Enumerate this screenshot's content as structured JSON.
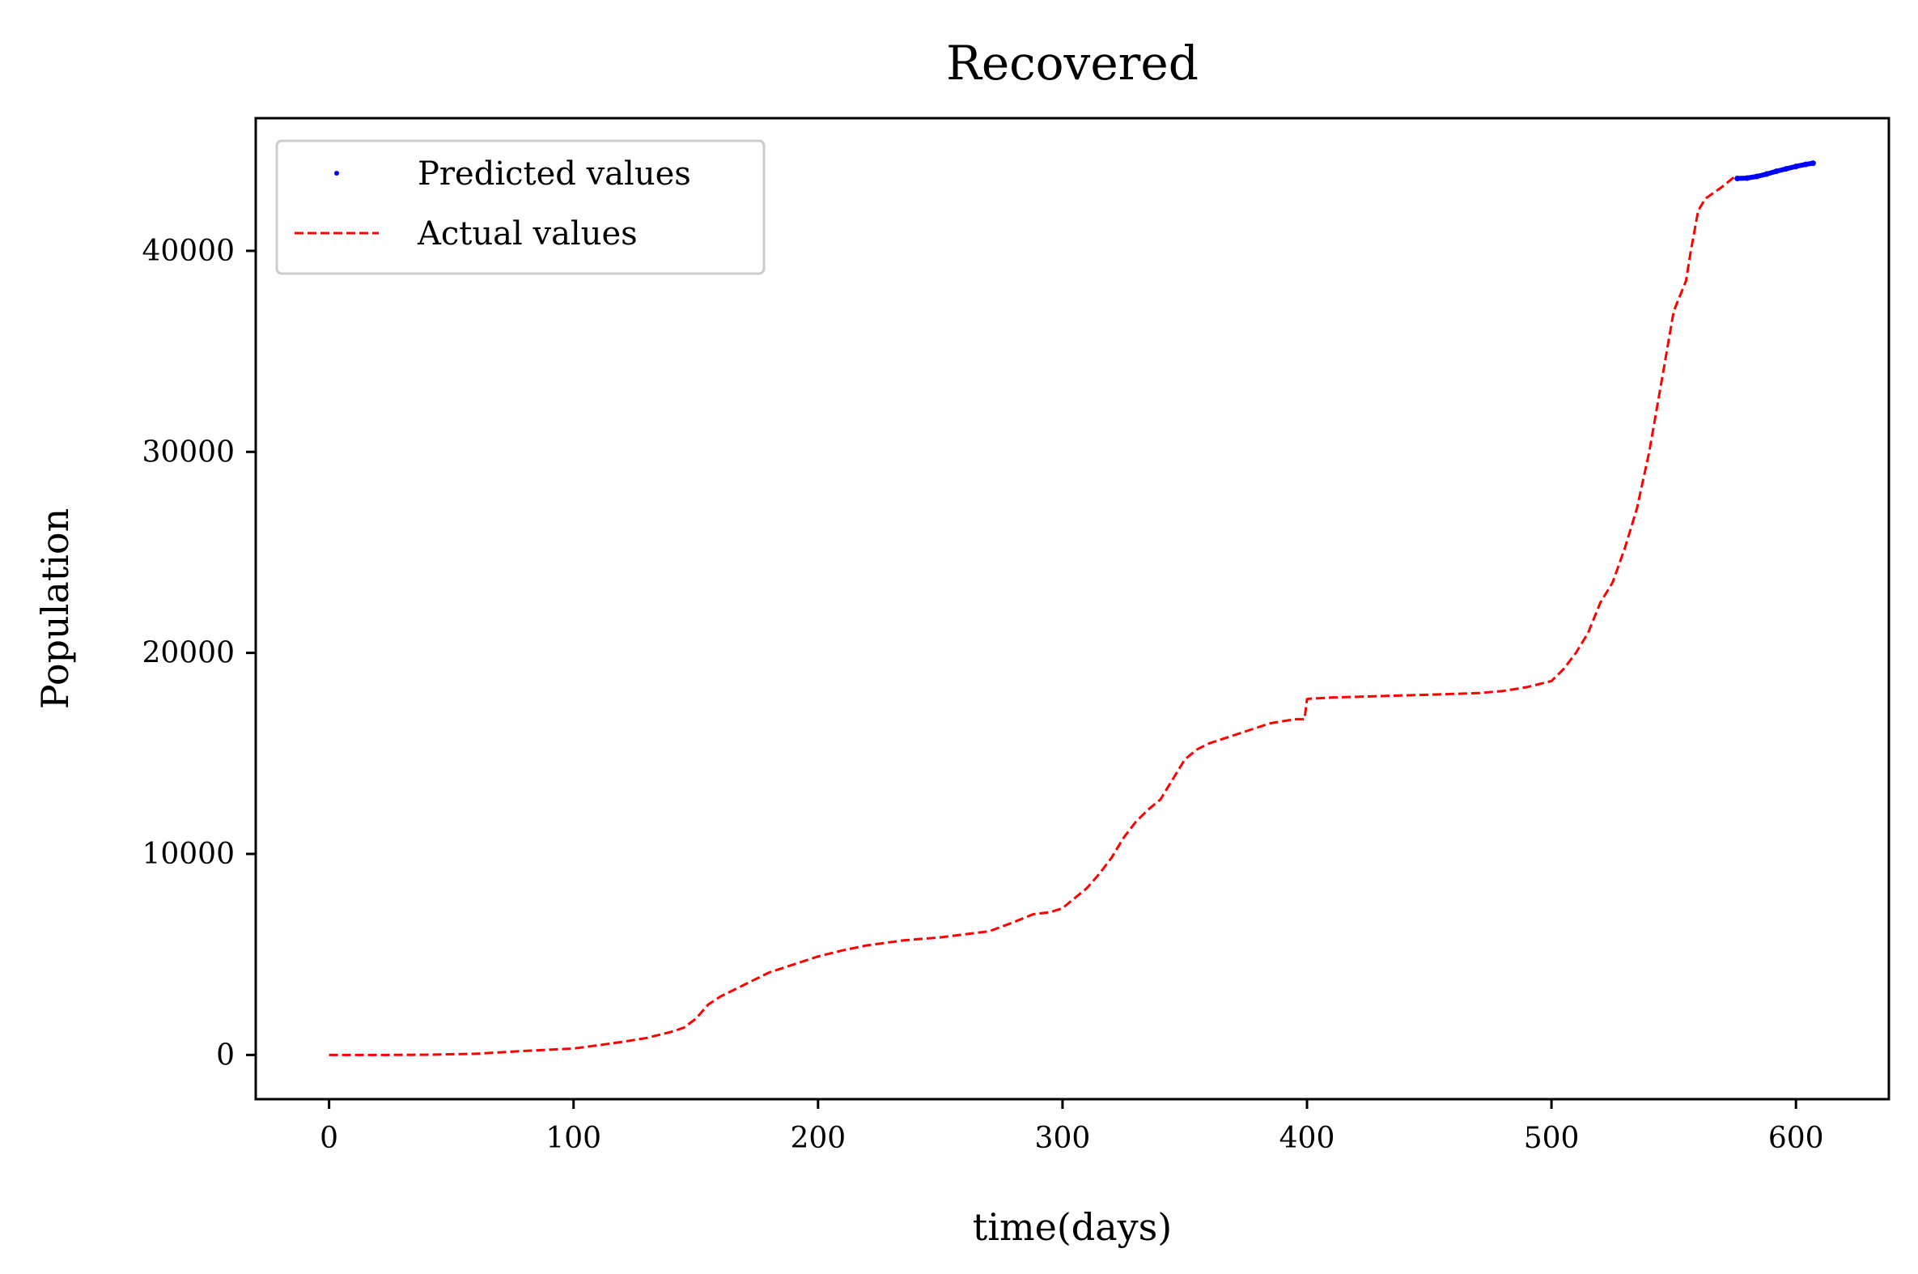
{
  "chart_data": {
    "type": "line",
    "title": "Recovered",
    "xlabel": "time(days)",
    "ylabel": "Population",
    "xlim": [
      -30,
      638
    ],
    "ylim": [
      -2200,
      46600
    ],
    "xticks": [
      0,
      100,
      200,
      300,
      400,
      500,
      600
    ],
    "yticks": [
      0,
      10000,
      20000,
      30000,
      40000
    ],
    "grid": false,
    "legend_position": "top-left",
    "series": [
      {
        "name": "Predicted values",
        "style": "dotted-markers",
        "color": "#0000ff",
        "x": [
          576,
          580,
          584,
          588,
          592,
          596,
          600,
          604,
          607
        ],
        "y": [
          43600,
          43620,
          43700,
          43820,
          43960,
          44080,
          44200,
          44300,
          44360
        ]
      },
      {
        "name": "Actual values",
        "style": "dashed",
        "color": "#ff0000",
        "x": [
          0,
          20,
          40,
          60,
          80,
          100,
          110,
          120,
          130,
          140,
          145,
          150,
          155,
          160,
          170,
          180,
          190,
          200,
          210,
          220,
          235,
          250,
          260,
          270,
          280,
          288,
          295,
          300,
          305,
          310,
          315,
          320,
          325,
          330,
          335,
          340,
          345,
          350,
          355,
          360,
          365,
          370,
          375,
          380,
          385,
          390,
          395,
          399,
          400,
          401,
          410,
          430,
          450,
          470,
          480,
          490,
          500,
          505,
          510,
          515,
          520,
          525,
          530,
          535,
          540,
          545,
          550,
          555,
          557,
          560,
          563,
          570,
          575
        ],
        "y": [
          0,
          0,
          10,
          60,
          200,
          320,
          480,
          650,
          850,
          1150,
          1350,
          1800,
          2500,
          2900,
          3500,
          4100,
          4500,
          4900,
          5200,
          5450,
          5700,
          5850,
          6000,
          6150,
          6600,
          7000,
          7100,
          7300,
          7800,
          8300,
          9000,
          9800,
          10800,
          11600,
          12200,
          12700,
          13700,
          14700,
          15200,
          15500,
          15700,
          15900,
          16100,
          16300,
          16500,
          16600,
          16700,
          16700,
          17700,
          17720,
          17780,
          17850,
          17920,
          18000,
          18100,
          18300,
          18600,
          19200,
          20000,
          21000,
          22500,
          23500,
          25200,
          27200,
          30000,
          33500,
          37000,
          38500,
          40000,
          42000,
          42600,
          43200,
          43700
        ]
      }
    ]
  }
}
